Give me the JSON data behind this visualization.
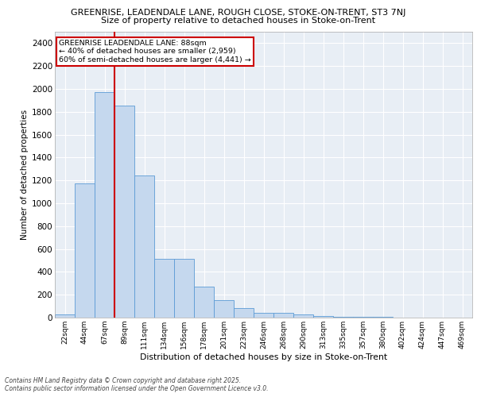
{
  "title_line1": "GREENRISE, LEADENDALE LANE, ROUGH CLOSE, STOKE-ON-TRENT, ST3 7NJ",
  "title_line2": "Size of property relative to detached houses in Stoke-on-Trent",
  "xlabel": "Distribution of detached houses by size in Stoke-on-Trent",
  "ylabel": "Number of detached properties",
  "categories": [
    "22sqm",
    "44sqm",
    "67sqm",
    "89sqm",
    "111sqm",
    "134sqm",
    "156sqm",
    "178sqm",
    "201sqm",
    "223sqm",
    "246sqm",
    "268sqm",
    "290sqm",
    "313sqm",
    "335sqm",
    "357sqm",
    "380sqm",
    "402sqm",
    "424sqm",
    "447sqm",
    "469sqm"
  ],
  "values": [
    25,
    1175,
    1970,
    1855,
    1245,
    515,
    515,
    270,
    155,
    85,
    45,
    45,
    30,
    15,
    10,
    5,
    5,
    3,
    2,
    1,
    1
  ],
  "bar_color": "#c5d8ee",
  "bar_edge_color": "#5b9bd5",
  "vline_color": "#cc0000",
  "annotation_text": "GREENRISE LEADENDALE LANE: 88sqm\n← 40% of detached houses are smaller (2,959)\n60% of semi-detached houses are larger (4,441) →",
  "annotation_box_color": "#cc0000",
  "ylim": [
    0,
    2500
  ],
  "yticks": [
    0,
    200,
    400,
    600,
    800,
    1000,
    1200,
    1400,
    1600,
    1800,
    2000,
    2200,
    2400
  ],
  "background_color": "#e8eef5",
  "grid_color": "#ffffff",
  "footer_line1": "Contains HM Land Registry data © Crown copyright and database right 2025.",
  "footer_line2": "Contains public sector information licensed under the Open Government Licence v3.0."
}
